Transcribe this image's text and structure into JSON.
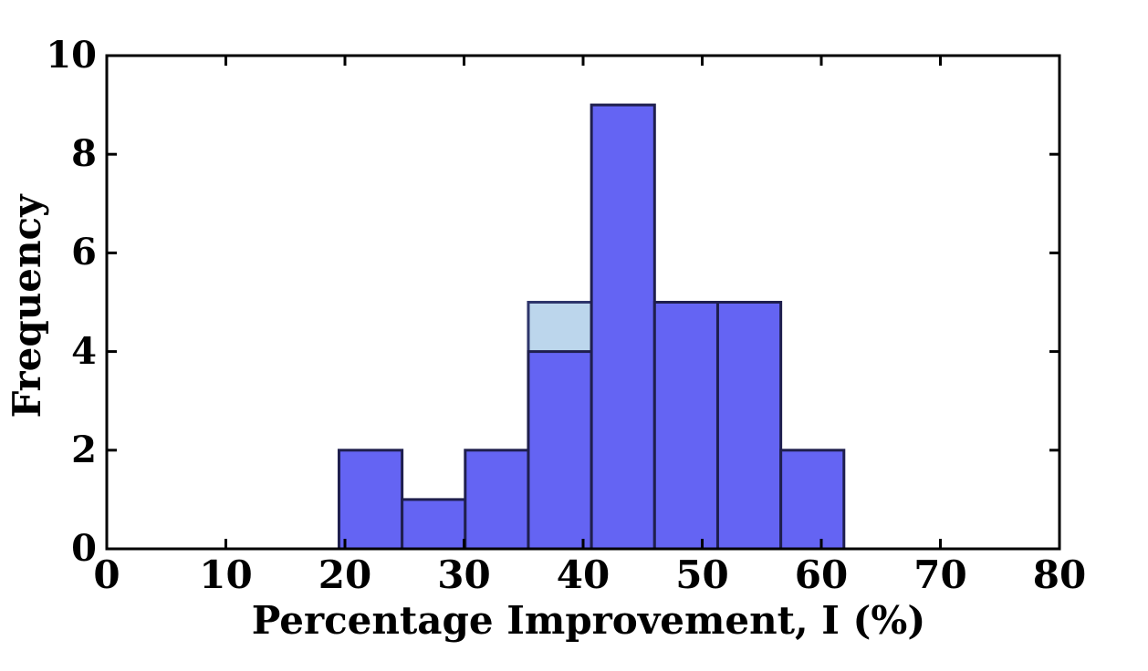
{
  "figure": {
    "background_color": "#ffffff",
    "text_color": "#000000"
  },
  "chart_data": {
    "type": "histogram",
    "title": "",
    "xlabel": "Percentage Improvement, I (%)",
    "ylabel": "Frequency",
    "xlim": [
      0,
      80
    ],
    "ylim": [
      0,
      10
    ],
    "x_ticks": [
      0,
      10,
      20,
      30,
      40,
      50,
      60,
      70,
      80
    ],
    "y_ticks": [
      0,
      2,
      4,
      6,
      8,
      10
    ],
    "grid": false,
    "legend": null,
    "bin_edges": [
      19.5,
      24.8,
      30.1,
      35.4,
      40.7,
      46.0,
      51.3,
      56.6,
      61.9
    ],
    "counts": [
      2,
      1,
      2,
      4,
      9,
      5,
      5,
      2
    ],
    "main_series": {
      "name": "main-histogram",
      "fill_color": "#6464f3",
      "edge_color": "#1f1f4e"
    },
    "overlay_series": {
      "name": "background-histogram",
      "fill_color": "#bcd6ec",
      "edge_color": "#2e356b",
      "visible_bins": [
        {
          "bin_start": 35.4,
          "bin_end": 40.7,
          "count": 5
        }
      ]
    },
    "axis_color": "#000000"
  }
}
